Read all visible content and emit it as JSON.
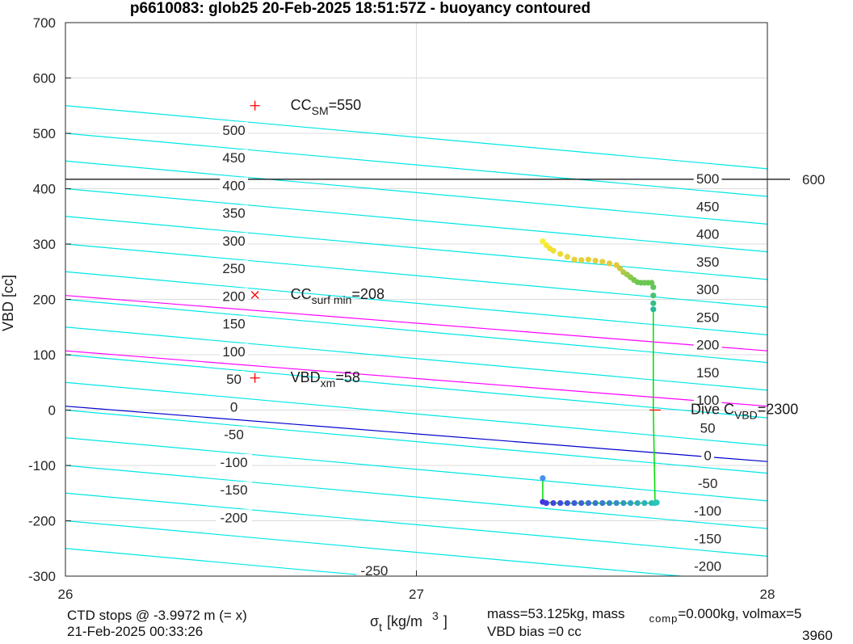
{
  "chart_data": {
    "type": "scatter",
    "title": "p6610083: glob25 20-Feb-2025 18:51:57Z - buoyancy contoured",
    "xlabel": {
      "sym": "σ",
      "sub": "t",
      "unit": "[kg/m",
      "sup": "3",
      "close": "]"
    },
    "ylabel": "VBD [cc]",
    "xlim": [
      26,
      28
    ],
    "ylim": [
      -300,
      700
    ],
    "xticks": [
      26,
      27,
      28
    ],
    "yticks": [
      -300,
      -200,
      -100,
      0,
      100,
      200,
      300,
      400,
      500,
      600,
      700
    ],
    "grid": true,
    "colors": {
      "contour": "#00e6e6",
      "magenta": "#ff00ff",
      "blue": "#0000cc",
      "black": "#000000",
      "marker": "#ff0000",
      "path": "#00dd00"
    },
    "contour_slope": -57,
    "contour_levels": [
      -300,
      -250,
      -200,
      -150,
      -100,
      -50,
      0,
      50,
      100,
      150,
      200,
      250,
      300,
      350,
      400,
      450,
      500,
      550
    ],
    "contour_labels_left": {
      "x": 26.48,
      "labels": [
        "500",
        "450",
        "400",
        "350",
        "300",
        "250",
        "200",
        "150",
        "100",
        "50",
        "0",
        "-50",
        "-100",
        "-150",
        "-200"
      ],
      "levels": [
        506,
        456,
        406,
        356,
        306,
        256,
        206,
        156,
        106,
        56,
        6,
        -44,
        -94,
        -144,
        -194
      ]
    },
    "contour_label_bottom": {
      "text": "-250",
      "x": 26.88,
      "y": -290
    },
    "contour_labels_right": {
      "x": 27.83,
      "labels": [
        "500",
        "450",
        "400",
        "350",
        "300",
        "250",
        "200",
        "150",
        "100",
        "50",
        "0",
        "-50",
        "-100",
        "-150",
        "-200"
      ],
      "levels": [
        418,
        368,
        318,
        268,
        218,
        168,
        118,
        68,
        18,
        -32,
        -82,
        -132,
        -182,
        -232,
        -282
      ]
    },
    "magenta_lines": [
      [
        207,
        107
      ],
      [
        107,
        7
      ]
    ],
    "blue_line": [
      7,
      -93
    ],
    "hline": {
      "y": 417,
      "label": "600"
    },
    "markers": [
      {
        "x": 26.54,
        "y": 550,
        "symbol": "+",
        "main": "CC",
        "sub": "SM",
        "suffix": "=550"
      },
      {
        "x": 26.54,
        "y": 208,
        "symbol": "x",
        "main": "CC",
        "sub": "surf min",
        "suffix": "=208"
      },
      {
        "x": 26.54,
        "y": 58,
        "symbol": "+",
        "main": "VBD",
        "sub": "xm",
        "suffix": "=58"
      },
      {
        "x": 27.68,
        "y": 0,
        "symbol": "-",
        "main": "Dive C",
        "sub": "VBD",
        "suffix": "=2300"
      }
    ],
    "series": [
      {
        "x": [
          27.36,
          27.37,
          27.38,
          27.39,
          27.41,
          27.43,
          27.45,
          27.47,
          27.49,
          27.51,
          27.53,
          27.55,
          27.57,
          27.58,
          27.59,
          27.6,
          27.61,
          27.62,
          27.63,
          27.64,
          27.65,
          27.66,
          27.67,
          27.675,
          27.675,
          27.675,
          27.675
        ],
        "y": [
          305,
          298,
          292,
          288,
          282,
          277,
          272,
          271,
          272,
          270,
          268,
          265,
          262,
          256,
          249,
          245,
          240,
          235,
          231,
          230,
          230,
          230,
          230,
          222,
          207,
          193,
          182
        ]
      },
      {
        "x": [
          27.36,
          27.37,
          27.39,
          27.41,
          27.43,
          27.45,
          27.47,
          27.49,
          27.51,
          27.53,
          27.55,
          27.57,
          27.59,
          27.61,
          27.63,
          27.65,
          27.67,
          27.68,
          27.685
        ],
        "y": [
          -166,
          -168,
          -168,
          -168,
          -168,
          -168,
          -168,
          -168,
          -168,
          -168,
          -168,
          -168,
          -168,
          -168,
          -168,
          -168,
          -168,
          -168,
          -167
        ]
      },
      {
        "x": [
          27.36
        ],
        "y": [
          -123
        ]
      }
    ],
    "path": {
      "x": [
        27.36,
        27.36,
        27.4,
        27.68,
        27.675,
        27.675
      ],
      "y": [
        -123,
        -166,
        -168,
        -168,
        0,
        182
      ]
    }
  },
  "footer": {
    "left_line1": "CTD stops @ -3.9972 m (= x)",
    "left_line2": "21-Feb-2025 00:33:26",
    "mass_line": "mass=53.125kg, mass",
    "comp_sub": "comp",
    "comp_rest": "=0.000kg, volmax=5",
    "bias_line": "VBD bias =0 cc",
    "right_num": "3960"
  }
}
